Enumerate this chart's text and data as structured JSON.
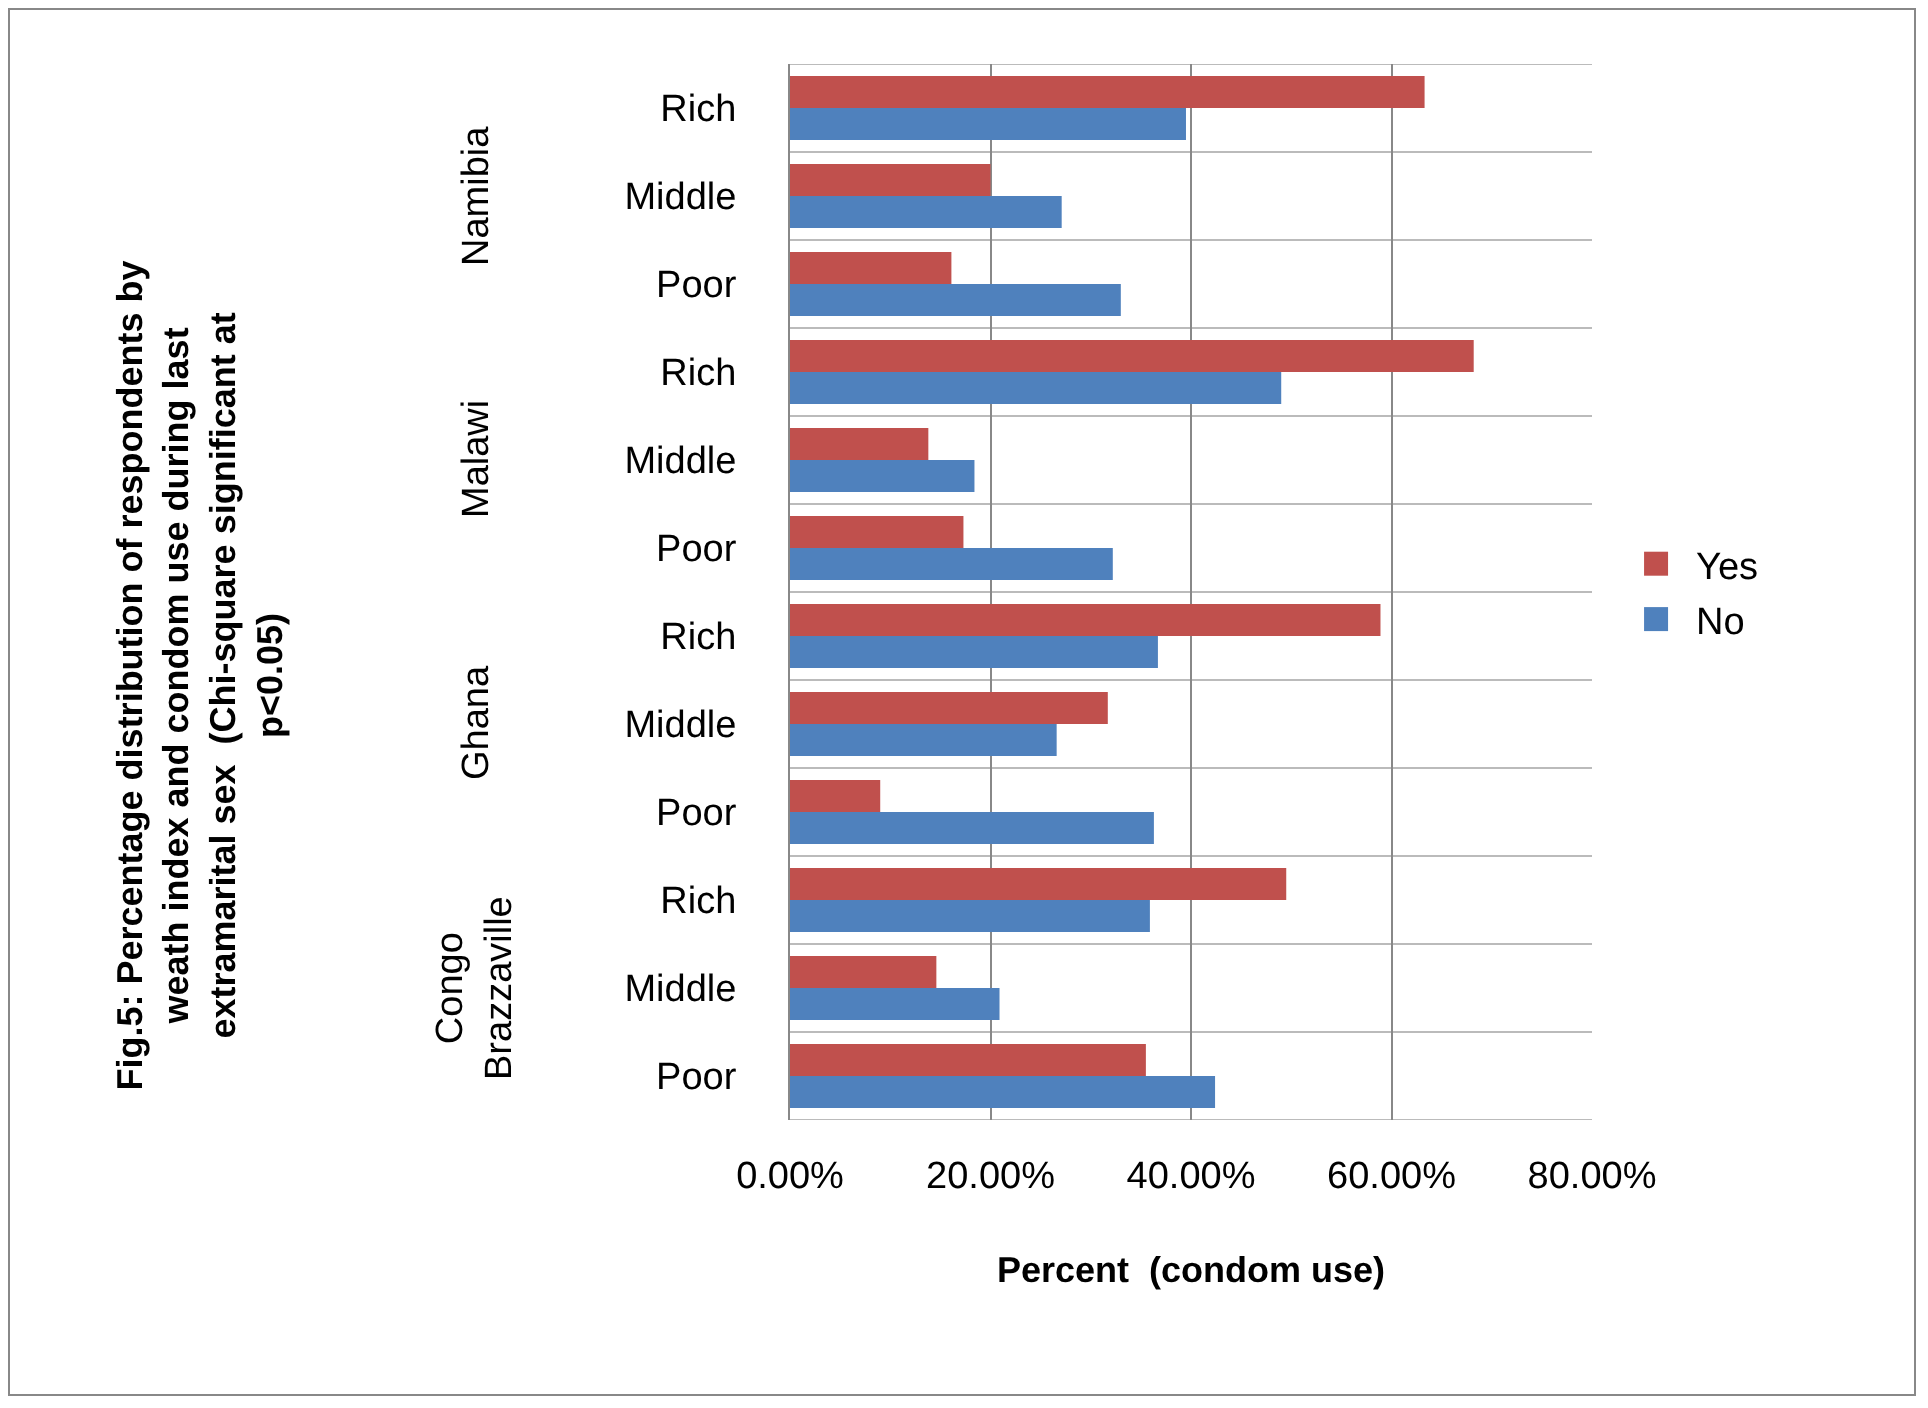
{
  "chart_data": {
    "type": "bar",
    "orientation": "horizontal",
    "xlabel": "Percent  (condom use)",
    "categories": [
      "Rich",
      "Middle",
      "Poor",
      "Rich",
      "Middle",
      "Poor",
      "Rich",
      "Middle",
      "Poor",
      "Rich",
      "Middle",
      "Poor"
    ],
    "annotations": [
      "Fig.5: Percentage distribution of respondents by weath index and condom use during last extramarital sex  (Chi-square significant at p<0.05)",
      "Namibia",
      "Malawi",
      "Ghana",
      "Congo Brazzaville"
    ],
    "series": [
      {
        "name": "Yes",
        "color": "#c0504d",
        "values": [
          63.3,
          20.0,
          16.1,
          68.2,
          13.8,
          17.3,
          58.9,
          31.7,
          9.0,
          49.5,
          14.6,
          35.5
        ]
      },
      {
        "name": "No",
        "color": "#4f81bd",
        "values": [
          39.5,
          27.1,
          33.0,
          49.0,
          18.4,
          32.2,
          36.7,
          26.6,
          36.3,
          35.9,
          20.9,
          42.4
        ]
      }
    ],
    "xlim": [
      0,
      80
    ],
    "xticks": [
      {
        "value": 0,
        "label": "0.00%"
      },
      {
        "value": 20,
        "label": "20.00%"
      },
      {
        "value": 40,
        "label": "40.00%"
      },
      {
        "value": 60,
        "label": "60.00%"
      },
      {
        "value": 80,
        "label": "80.00%"
      }
    ],
    "grid": true,
    "legend": "right"
  }
}
